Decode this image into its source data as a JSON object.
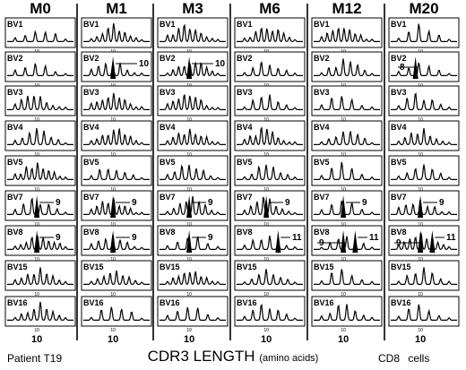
{
  "columns": [
    "M0",
    "M1",
    "M3",
    "M6",
    "M12",
    "M20"
  ],
  "rows": [
    "BV1",
    "BV2",
    "BV3",
    "BV4",
    "BV5",
    "BV7",
    "BV8",
    "BV15",
    "BV16"
  ],
  "tick_label": "10",
  "axis_label": "10",
  "annotations": [
    {
      "col": 1,
      "row": 1,
      "text": "10"
    },
    {
      "col": 2,
      "row": 1,
      "text": "10"
    },
    {
      "col": 5,
      "row": 1,
      "text": "8"
    },
    {
      "col": 0,
      "row": 5,
      "text": "9"
    },
    {
      "col": 1,
      "row": 5,
      "text": "9"
    },
    {
      "col": 2,
      "row": 5,
      "text": "9"
    },
    {
      "col": 3,
      "row": 5,
      "text": "9"
    },
    {
      "col": 4,
      "row": 5,
      "text": "9"
    },
    {
      "col": 5,
      "row": 5,
      "text": "9"
    },
    {
      "col": 0,
      "row": 6,
      "text": "9"
    },
    {
      "col": 1,
      "row": 6,
      "text": "9"
    },
    {
      "col": 2,
      "row": 6,
      "text": "9"
    },
    {
      "col": 3,
      "row": 6,
      "text": "11"
    },
    {
      "col": 4,
      "row": 6,
      "text": "9"
    },
    {
      "col": 4,
      "row": 6,
      "text": "11"
    },
    {
      "col": 5,
      "row": 6,
      "text": "9"
    },
    {
      "col": 5,
      "row": 6,
      "text": "11"
    }
  ],
  "footer": {
    "patient": "Patient T19",
    "title_main": "CDR3 LENGTH",
    "title_unit": "(amino acids)",
    "cells": "CD8 cells"
  }
}
